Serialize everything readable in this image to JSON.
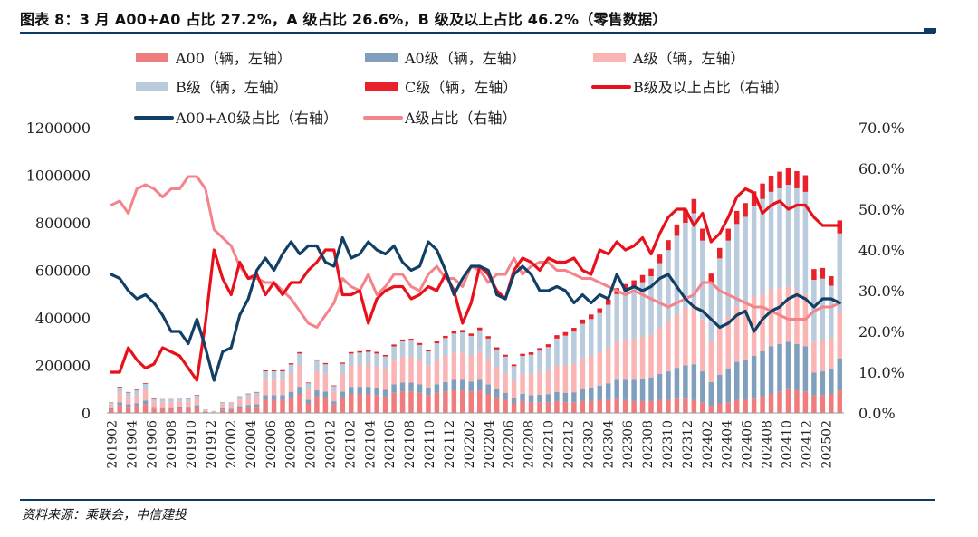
{
  "figure": {
    "title": "图表 8：3 月 A00+A0 占比 27.2%，A 级占比 26.6%，B 级及以上占比 46.2%（零售数据）",
    "source": "资料来源：乘联会，中信建投"
  },
  "colors": {
    "a00": "#f07d7d",
    "a0": "#7f9fbd",
    "a": "#fbb4b4",
    "b": "#b9cbdc",
    "c": "#e8212b",
    "b_share": "#e8111b",
    "a00a0_share": "#123f66",
    "a_share": "#f4848a"
  },
  "chart_data": {
    "type": "bar",
    "stacked": true,
    "ylim_left": [
      0,
      1200000
    ],
    "ylim_right": [
      0,
      0.7
    ],
    "left_ticks": [
      "0",
      "200000",
      "400000",
      "600000",
      "800000",
      "1000000",
      "1200000"
    ],
    "right_ticks": [
      "0.0%",
      "10.0%",
      "20.0%",
      "30.0%",
      "40.0%",
      "50.0%",
      "60.0%",
      "70.0%"
    ],
    "x_tick_labels": [
      "201902",
      "201904",
      "201906",
      "201908",
      "201910",
      "201912",
      "202002",
      "202004",
      "202006",
      "202008",
      "202010",
      "202012",
      "202102",
      "202104",
      "202106",
      "202108",
      "202110",
      "202112",
      "202202",
      "202204",
      "202206",
      "202208",
      "202210",
      "202212",
      "202302",
      "202304",
      "202306",
      "202308",
      "202310",
      "202312",
      "202402",
      "202404",
      "202406",
      "202408",
      "202410",
      "202412",
      "202502"
    ],
    "legend_placement": "top",
    "legend": [
      {
        "key": "a00",
        "label": "A00（辆，左轴）",
        "kind": "bar"
      },
      {
        "key": "a0",
        "label": "A0级（辆，左轴）",
        "kind": "bar"
      },
      {
        "key": "a",
        "label": "A级（辆，左轴）",
        "kind": "bar"
      },
      {
        "key": "b",
        "label": "B级（辆，左轴）",
        "kind": "bar"
      },
      {
        "key": "c",
        "label": "C级（辆，左轴）",
        "kind": "bar"
      },
      {
        "key": "b_share",
        "label": "B级及以上占比（右轴）",
        "kind": "line"
      },
      {
        "key": "a00a0_share",
        "label": "A00+A0级占比（右轴）",
        "kind": "line"
      },
      {
        "key": "a_share",
        "label": "A级占比（右轴）",
        "kind": "line"
      }
    ],
    "series": [
      {
        "key": "a00",
        "axis": "left",
        "values": [
          15000,
          33000,
          26000,
          29000,
          37000,
          18000,
          17000,
          17000,
          19000,
          19000,
          23000,
          4000,
          2000,
          14000,
          13000,
          21000,
          24000,
          26000,
          55000,
          55000,
          55000,
          65000,
          80000,
          40000,
          70000,
          65000,
          35000,
          65000,
          80000,
          80000,
          80000,
          75000,
          70000,
          85000,
          90000,
          90000,
          85000,
          75000,
          85000,
          90000,
          95000,
          95000,
          90000,
          95000,
          80000,
          65000,
          55000,
          40000,
          50000,
          45000,
          45000,
          45000,
          50000,
          45000,
          45000,
          50000,
          50000,
          55000,
          55000,
          60000,
          55000,
          50000,
          50000,
          50000,
          55000,
          55000,
          60000,
          60000,
          55000,
          45000,
          30000,
          40000,
          45000,
          55000,
          55000,
          60000,
          70000,
          80000,
          90000,
          100000,
          95000,
          90000,
          75000,
          75000,
          80000,
          95000
        ]
      },
      {
        "key": "a0",
        "axis": "left",
        "values": [
          5000,
          12000,
          10000,
          11000,
          15000,
          7000,
          7000,
          7000,
          8000,
          7000,
          9000,
          2000,
          1000,
          5000,
          5000,
          8000,
          9000,
          10000,
          20000,
          20000,
          20000,
          24000,
          30000,
          15000,
          25000,
          25000,
          14000,
          25000,
          30000,
          30000,
          30000,
          30000,
          28000,
          35000,
          38000,
          38000,
          36000,
          32000,
          36000,
          40000,
          44000,
          44000,
          42000,
          45000,
          40000,
          35000,
          30000,
          25000,
          30000,
          30000,
          32000,
          34000,
          38000,
          40000,
          42000,
          50000,
          55000,
          60000,
          70000,
          80000,
          85000,
          90000,
          95000,
          100000,
          110000,
          120000,
          130000,
          140000,
          150000,
          130000,
          100000,
          120000,
          140000,
          160000,
          170000,
          180000,
          190000,
          200000,
          200000,
          200000,
          195000,
          190000,
          95000,
          100000,
          105000,
          135000
        ]
      },
      {
        "key": "a",
        "axis": "left",
        "values": [
          15000,
          40000,
          32000,
          35000,
          45000,
          22000,
          21000,
          21000,
          23000,
          22000,
          27000,
          5000,
          3000,
          16000,
          16000,
          25000,
          30000,
          32000,
          65000,
          65000,
          65000,
          75000,
          90000,
          45000,
          80000,
          75000,
          42000,
          75000,
          90000,
          92000,
          92000,
          90000,
          88000,
          100000,
          108000,
          108000,
          100000,
          92000,
          102000,
          110000,
          115000,
          115000,
          110000,
          118000,
          108000,
          92000,
          82000,
          70000,
          85000,
          88000,
          95000,
          98000,
          110000,
          115000,
          120000,
          130000,
          135000,
          140000,
          150000,
          160000,
          165000,
          170000,
          175000,
          180000,
          195000,
          210000,
          225000,
          240000,
          255000,
          220000,
          170000,
          200000,
          220000,
          235000,
          240000,
          250000,
          240000,
          240000,
          235000,
          230000,
          225000,
          220000,
          130000,
          130000,
          130000,
          195000
        ]
      },
      {
        "key": "b",
        "axis": "left",
        "values": [
          9000,
          22000,
          18000,
          20000,
          25000,
          12000,
          12000,
          12000,
          13000,
          12000,
          15000,
          3000,
          2000,
          9000,
          9000,
          14000,
          16000,
          18000,
          35000,
          35000,
          35000,
          40000,
          50000,
          25000,
          45000,
          40000,
          22000,
          42000,
          50000,
          52000,
          55000,
          55000,
          52000,
          60000,
          65000,
          68000,
          65000,
          60000,
          70000,
          75000,
          80000,
          85000,
          82000,
          90000,
          85000,
          75000,
          70000,
          62000,
          75000,
          82000,
          90000,
          100000,
          115000,
          125000,
          135000,
          145000,
          155000,
          165000,
          180000,
          200000,
          210000,
          220000,
          230000,
          245000,
          270000,
          300000,
          330000,
          360000,
          380000,
          330000,
          250000,
          290000,
          320000,
          345000,
          360000,
          380000,
          400000,
          410000,
          420000,
          430000,
          430000,
          430000,
          260000,
          260000,
          220000,
          330000
        ]
      },
      {
        "key": "c",
        "axis": "left",
        "values": [
          1000,
          3000,
          2000,
          3000,
          3000,
          2000,
          1000,
          1000,
          1000,
          1000,
          2000,
          500,
          300,
          1000,
          1000,
          1500,
          2000,
          2000,
          4000,
          4000,
          5000,
          5000,
          6000,
          3000,
          5000,
          5000,
          3000,
          5000,
          6000,
          6000,
          7000,
          7000,
          6000,
          8000,
          8000,
          8000,
          8000,
          7000,
          8000,
          9000,
          10000,
          10000,
          10000,
          11000,
          10000,
          9000,
          8000,
          7000,
          9000,
          10000,
          11000,
          12000,
          14000,
          15000,
          16000,
          18000,
          19000,
          20000,
          22000,
          25000,
          27000,
          28000,
          30000,
          32000,
          36000,
          42000,
          48000,
          55000,
          60000,
          50000,
          36000,
          44000,
          50000,
          55000,
          58000,
          62000,
          65000,
          68000,
          70000,
          72000,
          72000,
          70000,
          45000,
          45000,
          40000,
          55000
        ]
      },
      {
        "key": "b_share",
        "axis": "right",
        "values": [
          0.1,
          0.1,
          0.16,
          0.13,
          0.11,
          0.12,
          0.16,
          0.15,
          0.14,
          0.11,
          0.08,
          0.22,
          0.4,
          0.33,
          0.29,
          0.37,
          0.33,
          0.34,
          0.29,
          0.32,
          0.29,
          0.32,
          0.32,
          0.35,
          0.37,
          0.4,
          0.4,
          0.29,
          0.29,
          0.3,
          0.22,
          0.28,
          0.3,
          0.31,
          0.31,
          0.28,
          0.29,
          0.31,
          0.3,
          0.34,
          0.3,
          0.22,
          0.27,
          0.36,
          0.34,
          0.3,
          0.28,
          0.35,
          0.38,
          0.37,
          0.35,
          0.38,
          0.37,
          0.37,
          0.38,
          0.35,
          0.34,
          0.4,
          0.39,
          0.42,
          0.4,
          0.41,
          0.43,
          0.39,
          0.44,
          0.48,
          0.5,
          0.5,
          0.46,
          0.49,
          0.42,
          0.44,
          0.48,
          0.53,
          0.55,
          0.54,
          0.49,
          0.51,
          0.52,
          0.5,
          0.51,
          0.51,
          0.48,
          0.46,
          0.46,
          0.46
        ]
      },
      {
        "key": "a00a0_share",
        "axis": "right",
        "values": [
          0.34,
          0.33,
          0.3,
          0.28,
          0.29,
          0.27,
          0.24,
          0.2,
          0.2,
          0.17,
          0.23,
          0.16,
          0.08,
          0.15,
          0.16,
          0.24,
          0.28,
          0.35,
          0.38,
          0.35,
          0.39,
          0.42,
          0.39,
          0.41,
          0.41,
          0.37,
          0.36,
          0.43,
          0.38,
          0.39,
          0.42,
          0.4,
          0.39,
          0.41,
          0.37,
          0.35,
          0.36,
          0.42,
          0.4,
          0.35,
          0.29,
          0.33,
          0.36,
          0.36,
          0.35,
          0.29,
          0.28,
          0.34,
          0.36,
          0.34,
          0.3,
          0.3,
          0.31,
          0.3,
          0.27,
          0.29,
          0.27,
          0.29,
          0.28,
          0.34,
          0.3,
          0.31,
          0.3,
          0.31,
          0.33,
          0.34,
          0.31,
          0.28,
          0.26,
          0.25,
          0.23,
          0.21,
          0.22,
          0.24,
          0.25,
          0.2,
          0.23,
          0.25,
          0.26,
          0.28,
          0.29,
          0.28,
          0.26,
          0.28,
          0.28,
          0.27
        ]
      },
      {
        "key": "a_share",
        "axis": "right",
        "values": [
          0.51,
          0.52,
          0.49,
          0.55,
          0.56,
          0.55,
          0.53,
          0.55,
          0.55,
          0.58,
          0.58,
          0.55,
          0.45,
          0.43,
          0.41,
          0.36,
          0.33,
          0.33,
          0.32,
          0.32,
          0.3,
          0.28,
          0.25,
          0.22,
          0.21,
          0.24,
          0.27,
          0.33,
          0.31,
          0.3,
          0.34,
          0.29,
          0.31,
          0.34,
          0.34,
          0.31,
          0.3,
          0.34,
          0.36,
          0.33,
          0.33,
          0.31,
          0.36,
          0.35,
          0.32,
          0.34,
          0.34,
          0.38,
          0.34,
          0.36,
          0.37,
          0.37,
          0.35,
          0.35,
          0.34,
          0.33,
          0.33,
          0.32,
          0.31,
          0.3,
          0.29,
          0.3,
          0.29,
          0.28,
          0.27,
          0.26,
          0.27,
          0.28,
          0.29,
          0.32,
          0.32,
          0.3,
          0.29,
          0.28,
          0.27,
          0.26,
          0.26,
          0.25,
          0.24,
          0.23,
          0.23,
          0.23,
          0.25,
          0.26,
          0.26,
          0.27
        ]
      }
    ]
  }
}
